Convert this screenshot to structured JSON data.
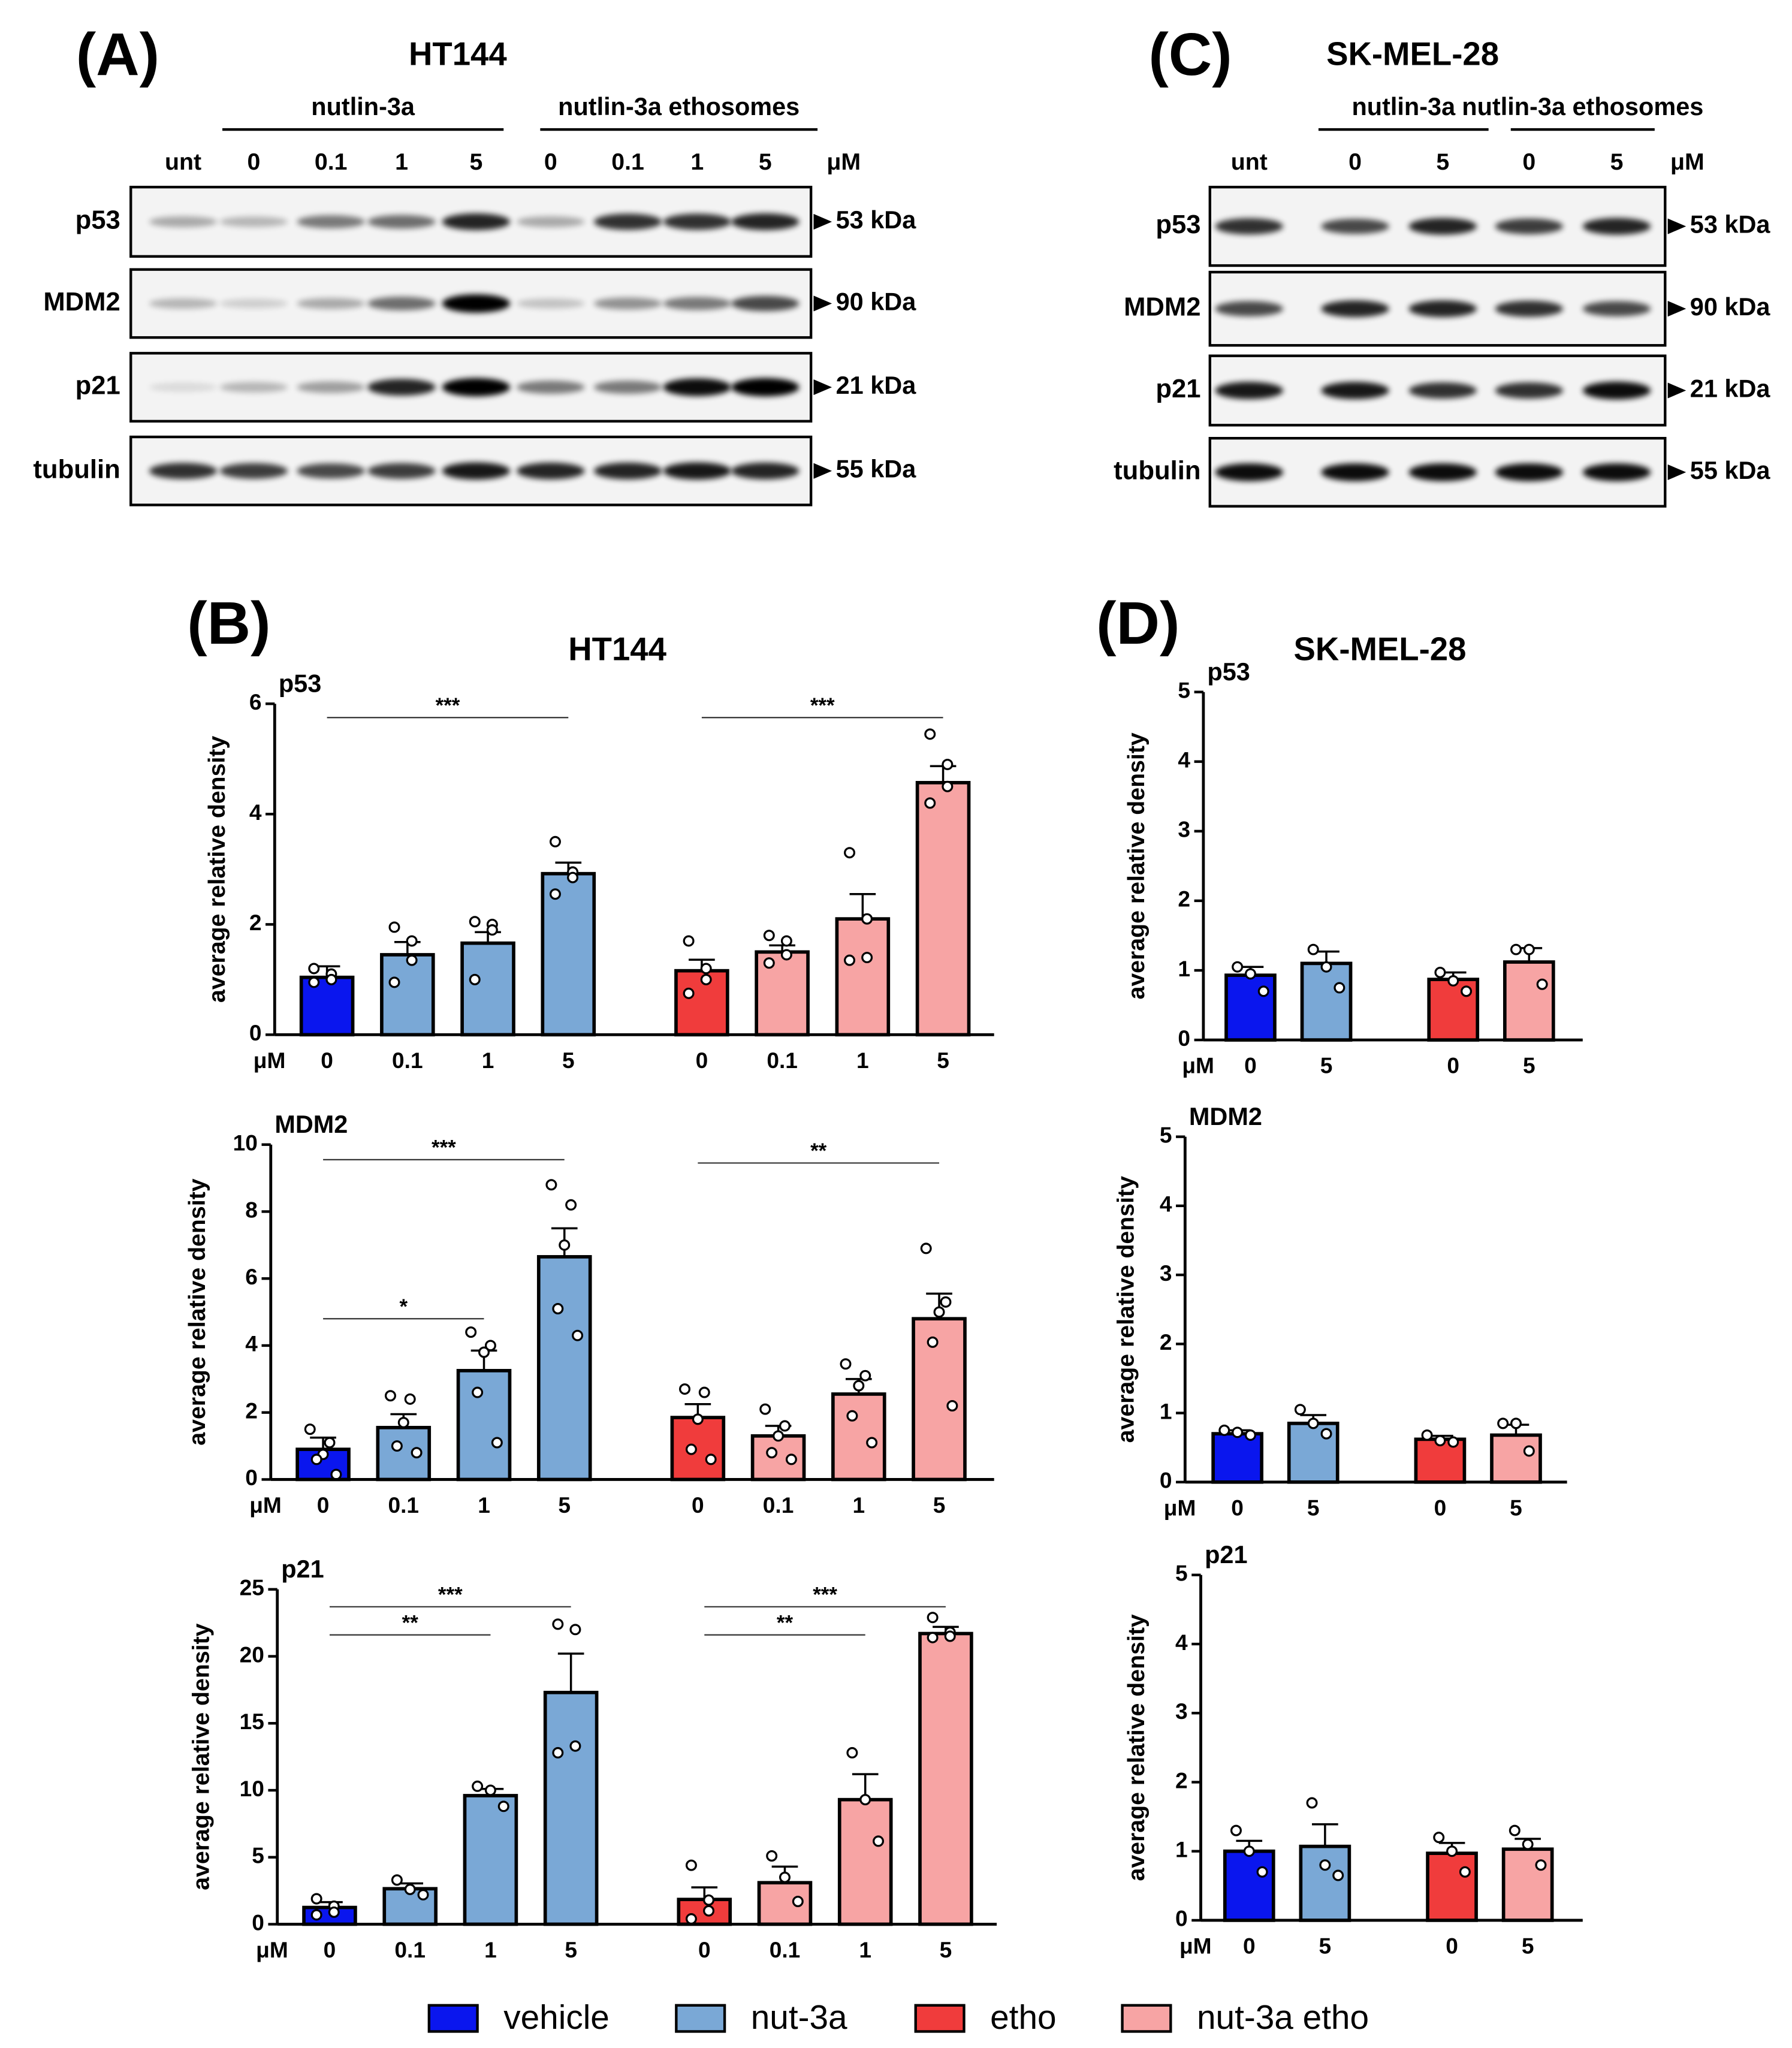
{
  "blots": [
    {
      "panel": "(A)",
      "title": "HT144",
      "groups": [
        {
          "label": "nutlin-3a"
        },
        {
          "label": "nutlin-3a ethosomes"
        }
      ],
      "lanes": [
        "unt",
        "0",
        "0.1",
        "1",
        "5",
        "0",
        "0.1",
        "1",
        "5"
      ],
      "unit": "μM",
      "rows": [
        {
          "label": "p53",
          "marker": "53 kDa"
        },
        {
          "label": "MDM2",
          "marker": "90 kDa"
        },
        {
          "label": "p21",
          "marker": "21 kDa"
        },
        {
          "label": "tubulin",
          "marker": "55 kDa"
        }
      ]
    },
    {
      "panel": "(C)",
      "title": "SK-MEL-28",
      "groups": [
        {
          "label": "nutlin-3a"
        },
        {
          "label": "nutlin-3a ethosomes"
        }
      ],
      "lanes": [
        "unt",
        "0",
        "5",
        "0",
        "5"
      ],
      "unit": "μM",
      "rows": [
        {
          "label": "p53",
          "marker": "53 kDa"
        },
        {
          "label": "MDM2",
          "marker": "90 kDa"
        },
        {
          "label": "p21",
          "marker": "21 kDa"
        },
        {
          "label": "tubulin",
          "marker": "55 kDa"
        }
      ]
    }
  ],
  "plots": [
    {
      "panel": "(B)",
      "title": "HT144"
    },
    {
      "panel": "(D)",
      "title": "SK-MEL-28"
    }
  ],
  "legend": [
    {
      "name": "vehicle",
      "color": "#0a16ee"
    },
    {
      "name": "nut-3a",
      "color": "#7aa8d6"
    },
    {
      "name": "etho",
      "color": "#f03c3c"
    },
    {
      "name": "nut-3a etho",
      "color": "#f7a4a4"
    }
  ],
  "chart_data": [
    {
      "type": "bar",
      "title": "p53",
      "y_label": "average relative density",
      "x_unit": "μM",
      "categories": [
        "0",
        "0.1",
        "1",
        "5",
        "0",
        "0.1",
        "1",
        "5"
      ],
      "ylim": [
        0,
        6
      ],
      "yticks": [
        0,
        2,
        4,
        6
      ],
      "series": [
        {
          "values": [
            1.04,
            null,
            null,
            null,
            null,
            null,
            null,
            null
          ],
          "errors": [
            0.2,
            null,
            null,
            null,
            null,
            null,
            null,
            null
          ],
          "points": [
            [
              1.2,
              1.1,
              1.0,
              0.95
            ],
            null,
            null,
            null,
            null,
            null,
            null,
            null
          ]
        },
        {
          "values": [
            null,
            1.45,
            1.66,
            2.92,
            null,
            null,
            null,
            null
          ],
          "errors": [
            null,
            0.23,
            0.2,
            0.2,
            null,
            null,
            null,
            null
          ],
          "points": [
            null,
            [
              1.95,
              1.7,
              1.35,
              0.95
            ],
            [
              2.05,
              2.0,
              1.9,
              1.0
            ],
            [
              3.5,
              2.95,
              2.85,
              2.55
            ],
            null,
            null,
            null,
            null
          ]
        },
        {
          "values": [
            null,
            null,
            null,
            null,
            1.16,
            null,
            null,
            null
          ],
          "errors": [
            null,
            null,
            null,
            null,
            0.2,
            null,
            null,
            null
          ],
          "points": [
            null,
            null,
            null,
            null,
            [
              1.7,
              1.2,
              1.0,
              0.75
            ],
            null,
            null,
            null
          ]
        },
        {
          "values": [
            null,
            null,
            null,
            null,
            null,
            1.5,
            2.1,
            4.57
          ],
          "errors": [
            null,
            null,
            null,
            null,
            null,
            0.12,
            0.45,
            0.3
          ],
          "points": [
            null,
            null,
            null,
            null,
            null,
            [
              1.8,
              1.7,
              1.45,
              1.3
            ],
            [
              3.3,
              2.1,
              1.4,
              1.35
            ],
            [
              5.45,
              4.9,
              4.5,
              4.2
            ]
          ]
        }
      ],
      "annotations": [
        {
          "from": 0,
          "to": 3,
          "y": 5.75,
          "label": "***"
        },
        {
          "from": 4,
          "to": 7,
          "y": 5.75,
          "label": "***"
        }
      ]
    },
    {
      "type": "bar",
      "title": "MDM2",
      "y_label": "average relative density",
      "x_unit": "μM",
      "categories": [
        "0",
        "0.1",
        "1",
        "5",
        "0",
        "0.1",
        "1",
        "5"
      ],
      "ylim": [
        0,
        10
      ],
      "yticks": [
        0,
        2,
        4,
        6,
        8,
        10
      ],
      "series": [
        {
          "values": [
            0.9,
            null,
            null,
            null,
            null,
            null,
            null,
            null
          ],
          "errors": [
            0.35,
            null,
            null,
            null,
            null,
            null,
            null,
            null
          ],
          "points": [
            [
              1.5,
              1.1,
              0.75,
              0.6,
              0.15
            ],
            null,
            null,
            null,
            null,
            null,
            null,
            null
          ]
        },
        {
          "values": [
            null,
            1.55,
            3.25,
            6.65,
            null,
            null,
            null,
            null
          ],
          "errors": [
            null,
            0.4,
            0.6,
            0.85,
            null,
            null,
            null,
            null
          ],
          "points": [
            null,
            [
              2.5,
              2.4,
              1.7,
              1.0,
              0.8
            ],
            [
              4.4,
              4.0,
              3.8,
              2.6,
              1.1
            ],
            [
              8.8,
              8.2,
              7.0,
              5.1,
              4.3
            ],
            null,
            null,
            null,
            null
          ]
        },
        {
          "values": [
            null,
            null,
            null,
            null,
            1.85,
            null,
            null,
            null
          ],
          "errors": [
            null,
            null,
            null,
            null,
            0.4,
            null,
            null,
            null
          ],
          "points": [
            null,
            null,
            null,
            null,
            [
              2.7,
              2.6,
              1.8,
              0.9,
              0.6
            ],
            null,
            null,
            null
          ]
        },
        {
          "values": [
            null,
            null,
            null,
            null,
            null,
            1.3,
            2.55,
            4.8
          ],
          "errors": [
            null,
            null,
            null,
            null,
            null,
            0.3,
            0.45,
            0.75
          ],
          "points": [
            null,
            null,
            null,
            null,
            null,
            [
              2.1,
              1.6,
              1.3,
              0.8,
              0.6
            ],
            [
              3.45,
              3.1,
              2.8,
              1.9,
              1.1
            ],
            [
              6.9,
              5.3,
              5.0,
              4.1,
              2.2
            ]
          ]
        }
      ],
      "annotations": [
        {
          "from": 0,
          "to": 3,
          "y": 9.55,
          "label": "***"
        },
        {
          "from": 4,
          "to": 7,
          "y": 9.45,
          "label": "**"
        },
        {
          "from": 0,
          "to": 2,
          "y": 4.8,
          "label": "*"
        }
      ]
    },
    {
      "type": "bar",
      "title": "p21",
      "y_label": "average relative density",
      "x_unit": "μM",
      "categories": [
        "0",
        "0.1",
        "1",
        "5",
        "0",
        "0.1",
        "1",
        "5"
      ],
      "ylim": [
        0,
        25
      ],
      "yticks": [
        0,
        5,
        10,
        15,
        20,
        25
      ],
      "series": [
        {
          "values": [
            1.25,
            null,
            null,
            null,
            null,
            null,
            null,
            null
          ],
          "errors": [
            0.4,
            null,
            null,
            null,
            null,
            null,
            null,
            null
          ],
          "points": [
            [
              1.9,
              1.35,
              0.9,
              0.7
            ],
            null,
            null,
            null,
            null,
            null,
            null,
            null
          ]
        },
        {
          "values": [
            null,
            2.65,
            9.6,
            17.3,
            null,
            null,
            null,
            null
          ],
          "errors": [
            null,
            0.4,
            0.5,
            2.9,
            null,
            null,
            null,
            null
          ],
          "points": [
            null,
            [
              3.3,
              2.6,
              2.2
            ],
            [
              10.3,
              10.0,
              8.8
            ],
            [
              22.4,
              22.0,
              13.3,
              12.8
            ],
            null,
            null,
            null,
            null
          ]
        },
        {
          "values": [
            null,
            null,
            null,
            null,
            1.85,
            null,
            null,
            null
          ],
          "errors": [
            null,
            null,
            null,
            null,
            0.9,
            null,
            null,
            null
          ],
          "points": [
            null,
            null,
            null,
            null,
            [
              4.4,
              1.8,
              1.0,
              0.4
            ],
            null,
            null,
            null
          ]
        },
        {
          "values": [
            null,
            null,
            null,
            null,
            null,
            3.1,
            9.3,
            21.7
          ],
          "errors": [
            null,
            null,
            null,
            null,
            null,
            1.2,
            1.9,
            0.5
          ],
          "points": [
            null,
            null,
            null,
            null,
            null,
            [
              5.1,
              3.5,
              1.7
            ],
            [
              12.8,
              9.3,
              6.2
            ],
            [
              22.9,
              21.8,
              21.5,
              21.4
            ]
          ]
        }
      ],
      "annotations": [
        {
          "from": 0,
          "to": 3,
          "y": 23.7,
          "label": "***"
        },
        {
          "from": 0,
          "to": 2,
          "y": 21.6,
          "label": "**"
        },
        {
          "from": 4,
          "to": 7,
          "y": 23.7,
          "label": "***"
        },
        {
          "from": 4,
          "to": 6,
          "y": 21.6,
          "label": "**"
        }
      ]
    },
    {
      "type": "bar",
      "title": "p53",
      "y_label": "average relative density",
      "x_unit": "μM",
      "categories": [
        "0",
        "5",
        "0",
        "5"
      ],
      "ylim": [
        0,
        5
      ],
      "yticks": [
        0,
        1,
        2,
        3,
        4,
        5
      ],
      "series": [
        {
          "values": [
            0.93,
            null,
            null,
            null
          ],
          "errors": [
            0.12,
            null,
            null,
            null
          ],
          "points": [
            [
              1.05,
              0.95,
              0.7
            ],
            null,
            null,
            null
          ]
        },
        {
          "values": [
            null,
            1.1,
            null,
            null
          ],
          "errors": [
            null,
            0.17,
            null,
            null
          ],
          "points": [
            null,
            [
              1.3,
              1.05,
              0.75
            ],
            null,
            null
          ]
        },
        {
          "values": [
            null,
            null,
            0.87,
            null
          ],
          "errors": [
            null,
            null,
            0.1,
            null
          ],
          "points": [
            null,
            null,
            [
              0.97,
              0.85,
              0.7
            ],
            null
          ]
        },
        {
          "values": [
            null,
            null,
            null,
            1.12
          ],
          "errors": [
            null,
            null,
            null,
            0.2
          ],
          "points": [
            null,
            null,
            null,
            [
              1.3,
              1.3,
              0.8
            ]
          ]
        }
      ],
      "annotations": []
    },
    {
      "type": "bar",
      "title": "MDM2",
      "y_label": "average relative density",
      "x_unit": "μM",
      "categories": [
        "0",
        "5",
        "0",
        "5"
      ],
      "ylim": [
        0,
        5
      ],
      "yticks": [
        0,
        1,
        2,
        3,
        4,
        5
      ],
      "series": [
        {
          "values": [
            0.7,
            null,
            null,
            null
          ],
          "errors": [
            0.05,
            null,
            null,
            null
          ],
          "points": [
            [
              0.75,
              0.72,
              0.68
            ],
            null,
            null,
            null
          ]
        },
        {
          "values": [
            null,
            0.85,
            null,
            null
          ],
          "errors": [
            null,
            0.12,
            null,
            null
          ],
          "points": [
            null,
            [
              1.05,
              0.85,
              0.7
            ],
            null,
            null
          ]
        },
        {
          "values": [
            null,
            null,
            0.62,
            null
          ],
          "errors": [
            null,
            null,
            0.05,
            null
          ],
          "points": [
            null,
            null,
            [
              0.68,
              0.6,
              0.58
            ],
            null
          ]
        },
        {
          "values": [
            null,
            null,
            null,
            0.68
          ],
          "errors": [
            null,
            null,
            null,
            0.15
          ],
          "points": [
            null,
            null,
            null,
            [
              0.85,
              0.85,
              0.45
            ]
          ]
        }
      ],
      "annotations": []
    },
    {
      "type": "bar",
      "title": "p21",
      "y_label": "average relative density",
      "x_unit": "μM",
      "categories": [
        "0",
        "5",
        "0",
        "5"
      ],
      "ylim": [
        0,
        5
      ],
      "yticks": [
        0,
        1,
        2,
        3,
        4,
        5
      ],
      "series": [
        {
          "values": [
            1.0,
            null,
            null,
            null
          ],
          "errors": [
            0.15,
            null,
            null,
            null
          ],
          "points": [
            [
              1.3,
              1.0,
              0.7
            ],
            null,
            null,
            null
          ]
        },
        {
          "values": [
            null,
            1.07,
            null,
            null
          ],
          "errors": [
            null,
            0.32,
            null,
            null
          ],
          "points": [
            null,
            [
              1.7,
              0.8,
              0.65
            ],
            null,
            null
          ]
        },
        {
          "values": [
            null,
            null,
            0.97,
            null
          ],
          "errors": [
            null,
            null,
            0.15,
            null
          ],
          "points": [
            null,
            null,
            [
              1.2,
              1.0,
              0.7
            ],
            null
          ]
        },
        {
          "values": [
            null,
            null,
            null,
            1.03
          ],
          "errors": [
            null,
            null,
            null,
            0.15
          ],
          "points": [
            null,
            null,
            null,
            [
              1.3,
              1.1,
              0.8
            ]
          ]
        }
      ],
      "annotations": []
    }
  ]
}
